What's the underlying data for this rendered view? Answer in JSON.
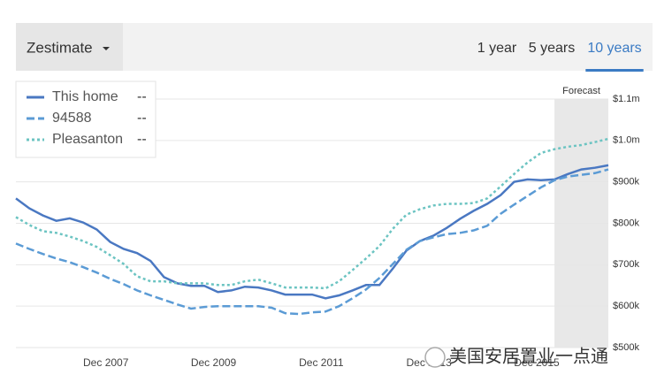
{
  "controls": {
    "dropdown": "Zestimate",
    "ranges": [
      "1 year",
      "5 years",
      "10 years"
    ],
    "active_range": 2
  },
  "watermark": "美国安居置业一点通",
  "chart_data": {
    "type": "line",
    "forecast_label": "Forecast",
    "forecast_start": 2016.25,
    "x": [
      2006.25,
      2006.5,
      2006.75,
      2007,
      2007.25,
      2007.5,
      2007.75,
      2008,
      2008.25,
      2008.5,
      2008.75,
      2009,
      2009.25,
      2009.5,
      2009.75,
      2010,
      2010.25,
      2010.5,
      2010.75,
      2011,
      2011.25,
      2011.5,
      2011.75,
      2012,
      2012.25,
      2012.5,
      2012.75,
      2013,
      2013.25,
      2013.5,
      2013.75,
      2014,
      2014.25,
      2014.5,
      2014.75,
      2015,
      2015.25,
      2015.5,
      2015.75,
      2016,
      2016.25,
      2016.5,
      2016.75,
      2017,
      2017.25
    ],
    "xlim": [
      2006.25,
      2017.25
    ],
    "xticks": [
      {
        "value": 2007.92,
        "label": "Dec 2007"
      },
      {
        "value": 2009.92,
        "label": "Dec 2009"
      },
      {
        "value": 2011.92,
        "label": "Dec 2011"
      },
      {
        "value": 2013.92,
        "label": "Dec 2013"
      },
      {
        "value": 2015.92,
        "label": "Dec 2015"
      }
    ],
    "ylim": [
      500000,
      1100000
    ],
    "yticks": [
      {
        "value": 500000,
        "label": "$500k"
      },
      {
        "value": 600000,
        "label": "$600k"
      },
      {
        "value": 700000,
        "label": "$700k"
      },
      {
        "value": 800000,
        "label": "$800k"
      },
      {
        "value": 900000,
        "label": "$900k"
      },
      {
        "value": 1000000,
        "label": "$1.0m"
      },
      {
        "value": 1100000,
        "label": "$1.1m"
      }
    ],
    "grid": true,
    "series": [
      {
        "name": "This home",
        "latest": "--",
        "color": "#4a78c2",
        "dash": "solid",
        "values": [
          860000,
          836000,
          819000,
          806000,
          812000,
          802000,
          785000,
          755000,
          738000,
          728000,
          709000,
          670000,
          655000,
          649000,
          649000,
          634000,
          638000,
          647000,
          645000,
          638000,
          628000,
          628000,
          628000,
          619000,
          626000,
          638000,
          651000,
          651000,
          691000,
          734000,
          757000,
          770000,
          789000,
          811000,
          830000,
          847000,
          868000,
          900000,
          906000,
          904000,
          906000,
          919000,
          930000,
          934000,
          940000
        ]
      },
      {
        "name": "94588",
        "latest": "--",
        "color": "#5b9bd5",
        "dash": "dashed",
        "values": [
          751000,
          738000,
          726000,
          715000,
          706000,
          694000,
          681000,
          666000,
          653000,
          638000,
          626000,
          615000,
          604000,
          594000,
          598000,
          600000,
          600000,
          600000,
          600000,
          596000,
          583000,
          581000,
          585000,
          587000,
          600000,
          619000,
          640000,
          668000,
          702000,
          736000,
          757000,
          766000,
          774000,
          777000,
          783000,
          794000,
          823000,
          845000,
          866000,
          887000,
          904000,
          913000,
          917000,
          921000,
          930000
        ]
      },
      {
        "name": "Pleasanton",
        "latest": "--",
        "color": "#6cc4c2",
        "dash": "dotted",
        "values": [
          815000,
          796000,
          781000,
          777000,
          768000,
          757000,
          743000,
          723000,
          702000,
          672000,
          660000,
          660000,
          655000,
          655000,
          655000,
          651000,
          651000,
          660000,
          664000,
          655000,
          645000,
          645000,
          645000,
          643000,
          660000,
          687000,
          715000,
          745000,
          787000,
          821000,
          834000,
          843000,
          847000,
          847000,
          849000,
          860000,
          889000,
          919000,
          947000,
          970000,
          979000,
          985000,
          989000,
          996000,
          1004000
        ]
      }
    ]
  }
}
